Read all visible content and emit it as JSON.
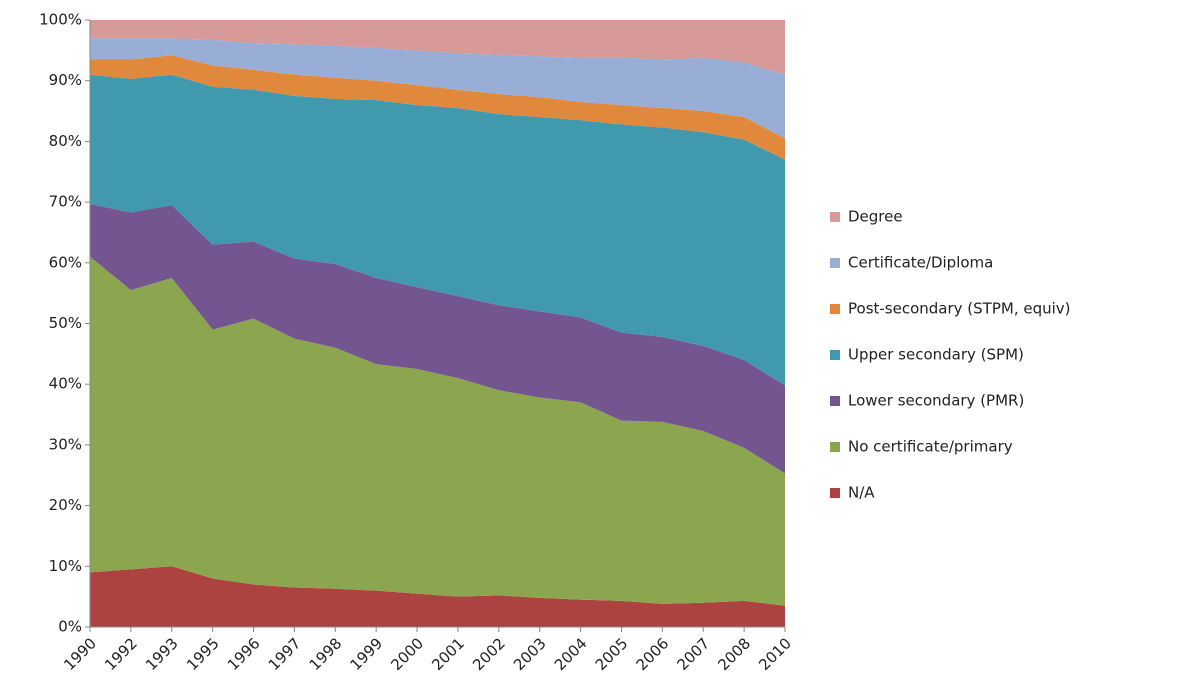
{
  "chart_data": {
    "type": "stacked_area",
    "categories": [
      "1990",
      "1992",
      "1993",
      "1995",
      "1996",
      "1997",
      "1998",
      "1999",
      "2000",
      "2001",
      "2002",
      "2003",
      "2004",
      "2005",
      "2006",
      "2007",
      "2008",
      "2010"
    ],
    "series": [
      {
        "name": "N/A",
        "color": "#ac4340",
        "values": [
          9,
          9.5,
          10,
          8,
          7,
          6.5,
          6.3,
          6,
          5.5,
          5,
          5.2,
          4.8,
          4.5,
          4.3,
          3.8,
          4,
          4.3,
          3.5
        ]
      },
      {
        "name": "No certificate/primary",
        "color": "#8ba64e",
        "values": [
          52,
          46,
          47.5,
          41,
          43.8,
          41,
          39.7,
          37.3,
          37,
          36,
          33.8,
          33,
          32.5,
          29.7,
          30,
          28.3,
          25.2,
          21.8
        ]
      },
      {
        "name": "Lower secondary (PMR)",
        "color": "#735690",
        "values": [
          8.7,
          12.8,
          12,
          14,
          12.7,
          13.2,
          13.8,
          14.2,
          13.5,
          13.5,
          14,
          14.2,
          14,
          14.5,
          14,
          14,
          14.5,
          14.5
        ]
      },
      {
        "name": "Upper secondary (SPM)",
        "color": "#4199ae",
        "values": [
          21.3,
          22,
          21.5,
          26,
          25,
          26.8,
          27.2,
          29.3,
          30,
          31,
          31.5,
          32,
          32.5,
          34.3,
          34.5,
          35.2,
          36.3,
          37.2
        ]
      },
      {
        "name": "Post-secondary (STPM, equiv)",
        "color": "#e0883c",
        "values": [
          2.5,
          3.2,
          3.2,
          3.5,
          3.3,
          3.5,
          3.5,
          3.2,
          3.3,
          3,
          3.3,
          3.3,
          3,
          3.2,
          3.2,
          3.5,
          3.7,
          3.5
        ]
      },
      {
        "name": "Certificate/Diploma",
        "color": "#98aed6",
        "values": [
          3.5,
          3.5,
          2.8,
          4.2,
          4.4,
          5,
          5.3,
          5.4,
          5.7,
          6,
          6.5,
          6.7,
          7.3,
          7.8,
          8,
          8.8,
          9,
          10.5
        ]
      },
      {
        "name": "Degree",
        "color": "#d79a98",
        "values": [
          3,
          3,
          3,
          3.3,
          3.8,
          4,
          4.2,
          4.6,
          5,
          5.5,
          5.7,
          6,
          6.2,
          6.2,
          6.5,
          6.2,
          7,
          9
        ]
      }
    ],
    "ylim": [
      0,
      100
    ],
    "yticks": [
      {
        "value": 0,
        "label": "0%"
      },
      {
        "value": 10,
        "label": "10%"
      },
      {
        "value": 20,
        "label": "20%"
      },
      {
        "value": 30,
        "label": "30%"
      },
      {
        "value": 40,
        "label": "40%"
      },
      {
        "value": 50,
        "label": "50%"
      },
      {
        "value": 60,
        "label": "60%"
      },
      {
        "value": 70,
        "label": "70%"
      },
      {
        "value": 80,
        "label": "80%"
      },
      {
        "value": 90,
        "label": "90%"
      },
      {
        "value": 100,
        "label": "100%"
      }
    ],
    "legend": "right"
  }
}
